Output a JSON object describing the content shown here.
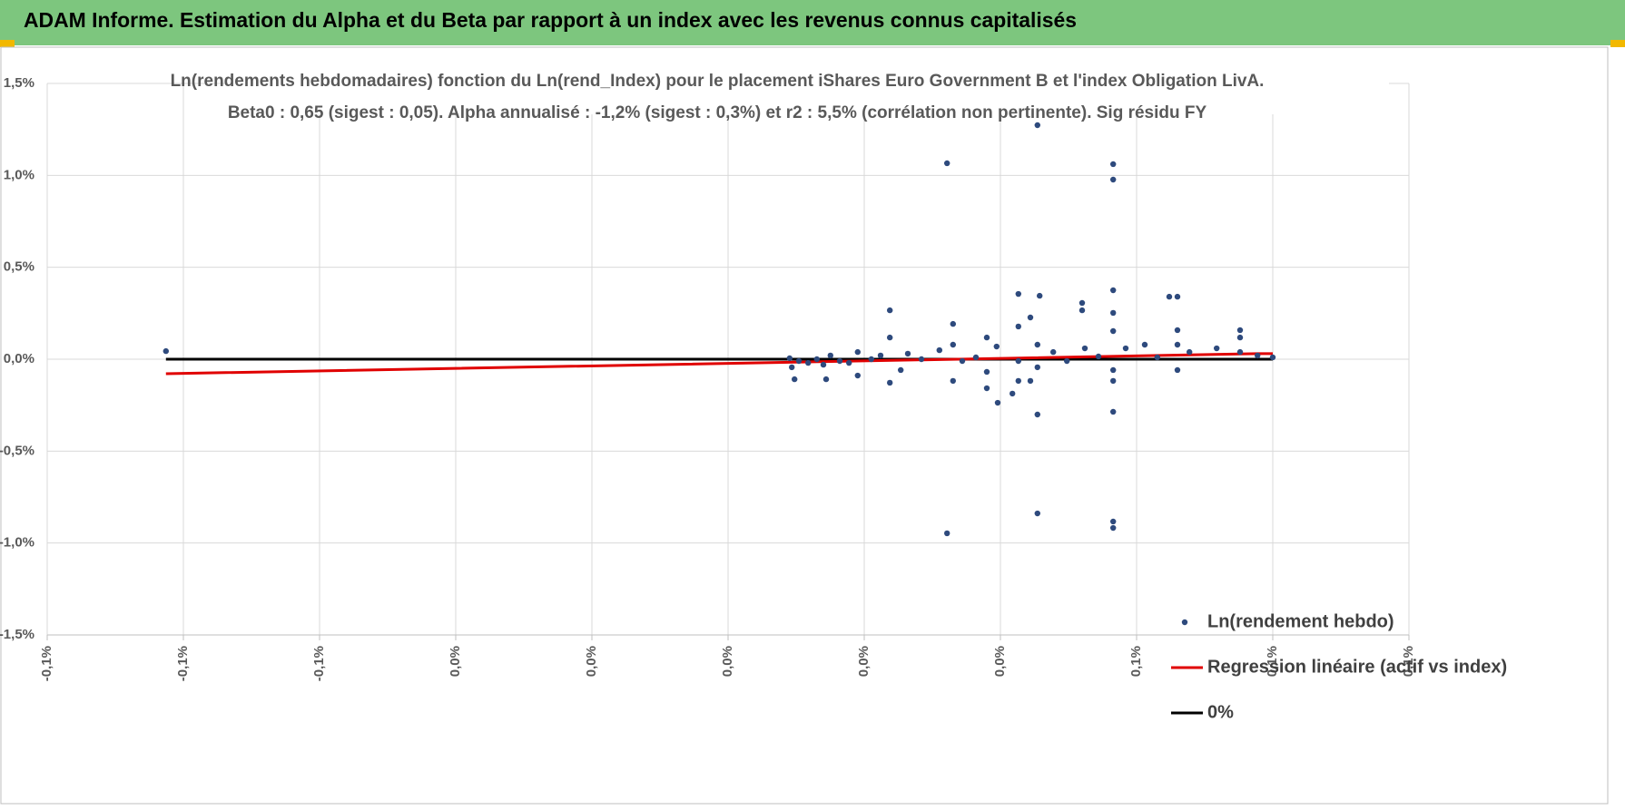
{
  "header": {
    "title": "ADAM Informe. Estimation du Alpha et du Beta par rapport à un index avec les revenus connus capitalisés"
  },
  "chart_data": {
    "type": "scatter",
    "title": [
      "Ln(rendements hebdomadaires) fonction du Ln(rend_Index) pour le placement iShares Euro Government B et l'index Obligation LivA.",
      "Beta0 : 0,65 (sigest : 0,05).  Alpha annualisé : -1,2% (sigest : 0,3%) et r2 : 5,5% (corrélation non pertinente). Sig résidu FY"
    ],
    "xlim": [
      -0.125,
      0.125
    ],
    "xticks": [
      {
        "value": -0.125,
        "label": "-0,1%"
      },
      {
        "value": -0.1,
        "label": "-0,1%"
      },
      {
        "value": -0.075,
        "label": "-0,1%"
      },
      {
        "value": -0.05,
        "label": "0,0%"
      },
      {
        "value": -0.025,
        "label": "0,0%"
      },
      {
        "value": 0,
        "label": "0,0%"
      },
      {
        "value": 0.025,
        "label": "0,0%"
      },
      {
        "value": 0.05,
        "label": "0,0%"
      },
      {
        "value": 0.075,
        "label": "0,1%"
      },
      {
        "value": 0.1,
        "label": "0,1%"
      },
      {
        "value": 0.125,
        "label": "0,1%"
      }
    ],
    "ylim": [
      -1.5,
      1.5
    ],
    "yticks": [
      {
        "value": -1.5,
        "label": "-1,5%"
      },
      {
        "value": -1,
        "label": "-1,0%"
      },
      {
        "value": -0.5,
        "label": "-0,5%"
      },
      {
        "value": 0,
        "label": "0,0%"
      },
      {
        "value": 0.5,
        "label": "0,5%"
      },
      {
        "value": 1,
        "label": "1,0%"
      },
      {
        "value": 1.5,
        "label": "1,5%"
      }
    ],
    "grid": true,
    "legend": "lower right",
    "series": [
      {
        "name": "Ln(rendement hebdo)",
        "color": "#2e4a7d",
        "mode": "markers",
        "x": [
          -0.1032,
          0.0402,
          0.0568,
          0.0707,
          0.0707,
          0.0402,
          0.0568,
          0.0707,
          0.0707,
          0.0568,
          0.0707,
          0.0495,
          0.0297,
          0.0533,
          0.0572,
          0.065,
          0.0707,
          0.081,
          0.0825,
          0.094,
          0.0413,
          0.0113,
          0.0117,
          0.0122,
          0.013,
          0.0147,
          0.0163,
          0.0175,
          0.018,
          0.0188,
          0.0205,
          0.0222,
          0.0238,
          0.0238,
          0.0263,
          0.028,
          0.0297,
          0.0297,
          0.0317,
          0.033,
          0.0355,
          0.0388,
          0.0413,
          0.0413,
          0.043,
          0.0455,
          0.0475,
          0.0475,
          0.0475,
          0.0493,
          0.0522,
          0.0533,
          0.0533,
          0.0533,
          0.0555,
          0.0555,
          0.0568,
          0.0568,
          0.0597,
          0.0622,
          0.065,
          0.0655,
          0.068,
          0.0707,
          0.0707,
          0.0707,
          0.0707,
          0.073,
          0.0765,
          0.0788,
          0.0825,
          0.0825,
          0.0825,
          0.0847,
          0.0897,
          0.094,
          0.094,
          0.0972,
          0.1
        ],
        "values": [
          0.044,
          1.066,
          1.273,
          1.061,
          0.977,
          -0.947,
          -0.839,
          -0.883,
          -0.918,
          -0.301,
          -0.286,
          -0.237,
          0.266,
          0.355,
          0.345,
          0.306,
          0.375,
          0.34,
          0.34,
          0.158,
          0.192,
          0.005,
          -0.044,
          -0.109,
          -0.01,
          -0.02,
          0,
          -0.03,
          -0.109,
          0.02,
          -0.01,
          -0.02,
          -0.089,
          0.039,
          0,
          0.02,
          -0.128,
          0.118,
          -0.059,
          0.03,
          0,
          0.049,
          -0.118,
          0.079,
          -0.01,
          0.01,
          -0.158,
          -0.069,
          0.118,
          0.069,
          -0.187,
          -0.118,
          0.178,
          -0.01,
          -0.118,
          0.227,
          -0.044,
          0.079,
          0.039,
          -0.01,
          0.266,
          0.059,
          0.015,
          -0.118,
          -0.059,
          0.153,
          0.252,
          0.059,
          0.079,
          0.01,
          -0.059,
          0.079,
          0.158,
          0.039,
          0.059,
          0.039,
          0.118,
          0.02,
          0.01
        ]
      },
      {
        "name": "Regression linéaire (actif vs index)",
        "color": "#e00000",
        "mode": "line",
        "x": [
          -0.1032,
          0.0972,
          0.1
        ],
        "values": [
          -0.079,
          0.03,
          0.03
        ]
      },
      {
        "name": "0%",
        "color": "#000000",
        "mode": "line",
        "x": [
          -0.1032,
          0.1
        ],
        "values": [
          0,
          0
        ]
      }
    ]
  }
}
